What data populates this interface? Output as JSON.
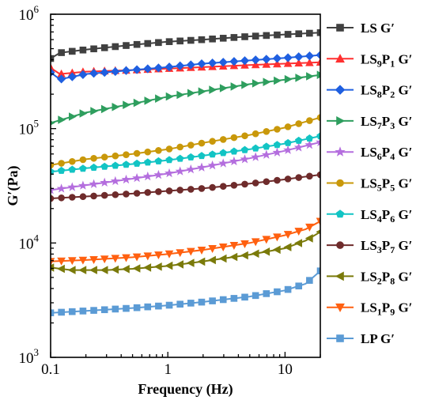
{
  "chart_data": {
    "type": "line",
    "title": "",
    "xlabel": "Frequency (Hz)",
    "ylabel": "G′(Pa)",
    "xscale": "log",
    "yscale": "log",
    "xlim": [
      0.1,
      20
    ],
    "ylim": [
      1000,
      1000000
    ],
    "x_ticks": [
      {
        "value": 0.1,
        "label": "0.1"
      },
      {
        "value": 1,
        "label": "1"
      },
      {
        "value": 10,
        "label": "10"
      }
    ],
    "y_ticks": [
      {
        "value": 1000,
        "base": "10",
        "exp": "3"
      },
      {
        "value": 10000,
        "base": "10",
        "exp": "4"
      },
      {
        "value": 100000,
        "base": "10",
        "exp": "5"
      },
      {
        "value": 1000000,
        "base": "10",
        "exp": "6"
      }
    ],
    "grid": false,
    "legend_position": "right",
    "series": [
      {
        "name": "LS G′",
        "legend": [
          {
            "t": "LS G′"
          }
        ],
        "color": "#404040",
        "marker": "square",
        "points": [
          [
            0.1,
            410000
          ],
          [
            0.12,
            460000
          ],
          [
            0.2,
            490000
          ],
          [
            0.5,
            540000
          ],
          [
            1,
            575000
          ],
          [
            2,
            600000
          ],
          [
            5,
            640000
          ],
          [
            10,
            665000
          ],
          [
            20,
            690000
          ]
        ]
      },
      {
        "name": "LS9P1 G′",
        "legend": [
          {
            "t": "LS"
          },
          {
            "t": "9",
            "sub": true
          },
          {
            "t": "P"
          },
          {
            "t": "1",
            "sub": true
          },
          {
            "t": " G′"
          }
        ],
        "color": "#ff3030",
        "marker": "triangle-up",
        "points": [
          [
            0.1,
            340000
          ],
          [
            0.12,
            300000
          ],
          [
            0.2,
            315000
          ],
          [
            0.5,
            325000
          ],
          [
            1,
            335000
          ],
          [
            2,
            345000
          ],
          [
            5,
            360000
          ],
          [
            10,
            370000
          ],
          [
            20,
            380000
          ]
        ]
      },
      {
        "name": "LS8P2 G′",
        "legend": [
          {
            "t": "LS"
          },
          {
            "t": "8",
            "sub": true
          },
          {
            "t": "P"
          },
          {
            "t": "2",
            "sub": true
          },
          {
            "t": " G′"
          }
        ],
        "color": "#1f5fe0",
        "marker": "diamond",
        "points": [
          [
            0.1,
            310000
          ],
          [
            0.12,
            270000
          ],
          [
            0.2,
            300000
          ],
          [
            0.5,
            325000
          ],
          [
            1,
            345000
          ],
          [
            2,
            370000
          ],
          [
            5,
            395000
          ],
          [
            10,
            415000
          ],
          [
            20,
            440000
          ]
        ]
      },
      {
        "name": "LS7P3 G′",
        "legend": [
          {
            "t": "LS"
          },
          {
            "t": "7",
            "sub": true
          },
          {
            "t": "P"
          },
          {
            "t": "3",
            "sub": true
          },
          {
            "t": " G′"
          }
        ],
        "color": "#2e9e5e",
        "marker": "triangle-right",
        "points": [
          [
            0.1,
            112000
          ],
          [
            0.2,
            138000
          ],
          [
            0.5,
            165000
          ],
          [
            1,
            190000
          ],
          [
            2,
            212000
          ],
          [
            5,
            245000
          ],
          [
            10,
            268000
          ],
          [
            20,
            295000
          ]
        ]
      },
      {
        "name": "LS6P4 G′",
        "legend": [
          {
            "t": "LS"
          },
          {
            "t": "6",
            "sub": true
          },
          {
            "t": "P"
          },
          {
            "t": "4",
            "sub": true
          },
          {
            "t": " G′"
          }
        ],
        "color": "#b46ede",
        "marker": "star",
        "points": [
          [
            0.1,
            29000
          ],
          [
            0.2,
            32000
          ],
          [
            0.5,
            36500
          ],
          [
            1,
            40500
          ],
          [
            2,
            46000
          ],
          [
            5,
            55000
          ],
          [
            10,
            64000
          ],
          [
            20,
            76000
          ]
        ]
      },
      {
        "name": "LS5P5 G′",
        "legend": [
          {
            "t": "LS"
          },
          {
            "t": "5",
            "sub": true
          },
          {
            "t": "P"
          },
          {
            "t": "5",
            "sub": true
          },
          {
            "t": " G′"
          }
        ],
        "color": "#c9980a",
        "marker": "circle",
        "points": [
          [
            0.1,
            48000
          ],
          [
            0.2,
            54000
          ],
          [
            0.5,
            60000
          ],
          [
            1,
            66000
          ],
          [
            2,
            75000
          ],
          [
            5,
            88000
          ],
          [
            10,
            102000
          ],
          [
            20,
            125000
          ]
        ]
      },
      {
        "name": "LS4P6 G′",
        "legend": [
          {
            "t": "LS"
          },
          {
            "t": "4",
            "sub": true
          },
          {
            "t": "P"
          },
          {
            "t": "6",
            "sub": true
          },
          {
            "t": " G′"
          }
        ],
        "color": "#12c4c4",
        "marker": "pentagon",
        "points": [
          [
            0.1,
            42000
          ],
          [
            0.2,
            45000
          ],
          [
            0.5,
            49000
          ],
          [
            1,
            53000
          ],
          [
            2,
            58000
          ],
          [
            5,
            66000
          ],
          [
            10,
            74000
          ],
          [
            20,
            86000
          ]
        ]
      },
      {
        "name": "LS3P7 G′",
        "legend": [
          {
            "t": "LS"
          },
          {
            "t": "3",
            "sub": true
          },
          {
            "t": "P"
          },
          {
            "t": "7",
            "sub": true
          },
          {
            "t": " G′"
          }
        ],
        "color": "#6e2b2b",
        "marker": "circle",
        "points": [
          [
            0.1,
            24500
          ],
          [
            0.2,
            25500
          ],
          [
            0.5,
            27000
          ],
          [
            1,
            28500
          ],
          [
            2,
            30000
          ],
          [
            5,
            33000
          ],
          [
            10,
            36000
          ],
          [
            20,
            39500
          ]
        ]
      },
      {
        "name": "LS2P8 G′",
        "legend": [
          {
            "t": "LS"
          },
          {
            "t": "2",
            "sub": true
          },
          {
            "t": "P"
          },
          {
            "t": "8",
            "sub": true
          },
          {
            "t": " G′"
          }
        ],
        "color": "#7a7a0a",
        "marker": "triangle-left",
        "points": [
          [
            0.1,
            6100
          ],
          [
            0.15,
            5800
          ],
          [
            0.3,
            5800
          ],
          [
            0.5,
            5950
          ],
          [
            1,
            6300
          ],
          [
            2,
            6900
          ],
          [
            5,
            7900
          ],
          [
            10,
            9000
          ],
          [
            15,
            10500
          ],
          [
            20,
            12500
          ]
        ]
      },
      {
        "name": "LS1P9 G′",
        "legend": [
          {
            "t": "LS"
          },
          {
            "t": "1",
            "sub": true
          },
          {
            "t": "P"
          },
          {
            "t": "9",
            "sub": true
          },
          {
            "t": " G′"
          }
        ],
        "color": "#ff6010",
        "marker": "triangle-down",
        "points": [
          [
            0.1,
            6900
          ],
          [
            0.2,
            7100
          ],
          [
            0.5,
            7500
          ],
          [
            1,
            8000
          ],
          [
            2,
            8700
          ],
          [
            5,
            10000
          ],
          [
            10,
            11700
          ],
          [
            15,
            13200
          ],
          [
            20,
            15500
          ]
        ]
      },
      {
        "name": "LP G′",
        "legend": [
          {
            "t": "LP G′"
          }
        ],
        "color": "#5b9bd5",
        "marker": "square",
        "points": [
          [
            0.1,
            2450
          ],
          [
            0.2,
            2550
          ],
          [
            0.5,
            2700
          ],
          [
            1,
            2850
          ],
          [
            2,
            3050
          ],
          [
            5,
            3400
          ],
          [
            10,
            3850
          ],
          [
            15,
            4400
          ],
          [
            20,
            5700
          ]
        ]
      }
    ]
  }
}
